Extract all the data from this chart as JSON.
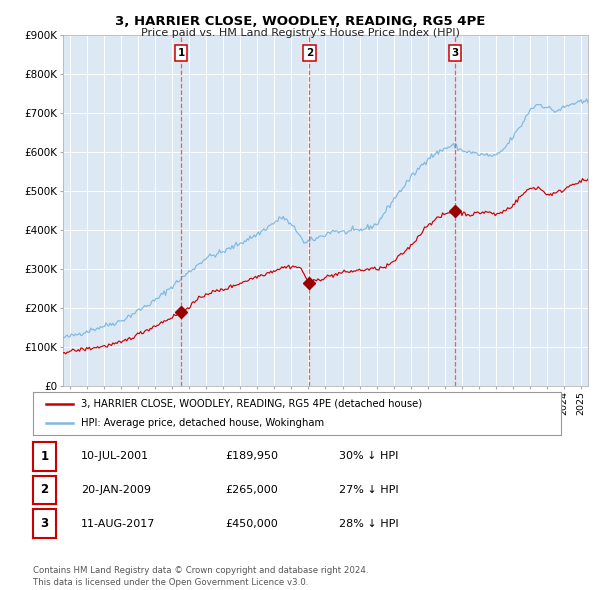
{
  "title": "3, HARRIER CLOSE, WOODLEY, READING, RG5 4PE",
  "subtitle": "Price paid vs. HM Land Registry's House Price Index (HPI)",
  "background_color": "#dce9f5",
  "plot_bg_color": "#dce9f5",
  "hpi_color": "#7fb8e0",
  "price_color": "#cc0000",
  "marker_color": "#990000",
  "dashed_color": "#ff5555",
  "ylim": [
    0,
    900000
  ],
  "yticks": [
    0,
    100000,
    200000,
    300000,
    400000,
    500000,
    600000,
    700000,
    800000,
    900000
  ],
  "ytick_labels": [
    "£0",
    "£100K",
    "£200K",
    "£300K",
    "£400K",
    "£500K",
    "£600K",
    "£700K",
    "£800K",
    "£900K"
  ],
  "xlim_start": 1994.6,
  "xlim_end": 2025.4,
  "sale_dates": [
    2001.53,
    2009.055,
    2017.61
  ],
  "sale_prices": [
    189950,
    265000,
    450000
  ],
  "sale_labels": [
    "1",
    "2",
    "3"
  ],
  "legend_line1": "3, HARRIER CLOSE, WOODLEY, READING, RG5 4PE (detached house)",
  "legend_line2": "HPI: Average price, detached house, Wokingham",
  "table_rows": [
    [
      "1",
      "10-JUL-2001",
      "£189,950",
      "30% ↓ HPI"
    ],
    [
      "2",
      "20-JAN-2009",
      "£265,000",
      "27% ↓ HPI"
    ],
    [
      "3",
      "11-AUG-2017",
      "£450,000",
      "28% ↓ HPI"
    ]
  ],
  "footer": "Contains HM Land Registry data © Crown copyright and database right 2024.\nThis data is licensed under the Open Government Licence v3.0."
}
